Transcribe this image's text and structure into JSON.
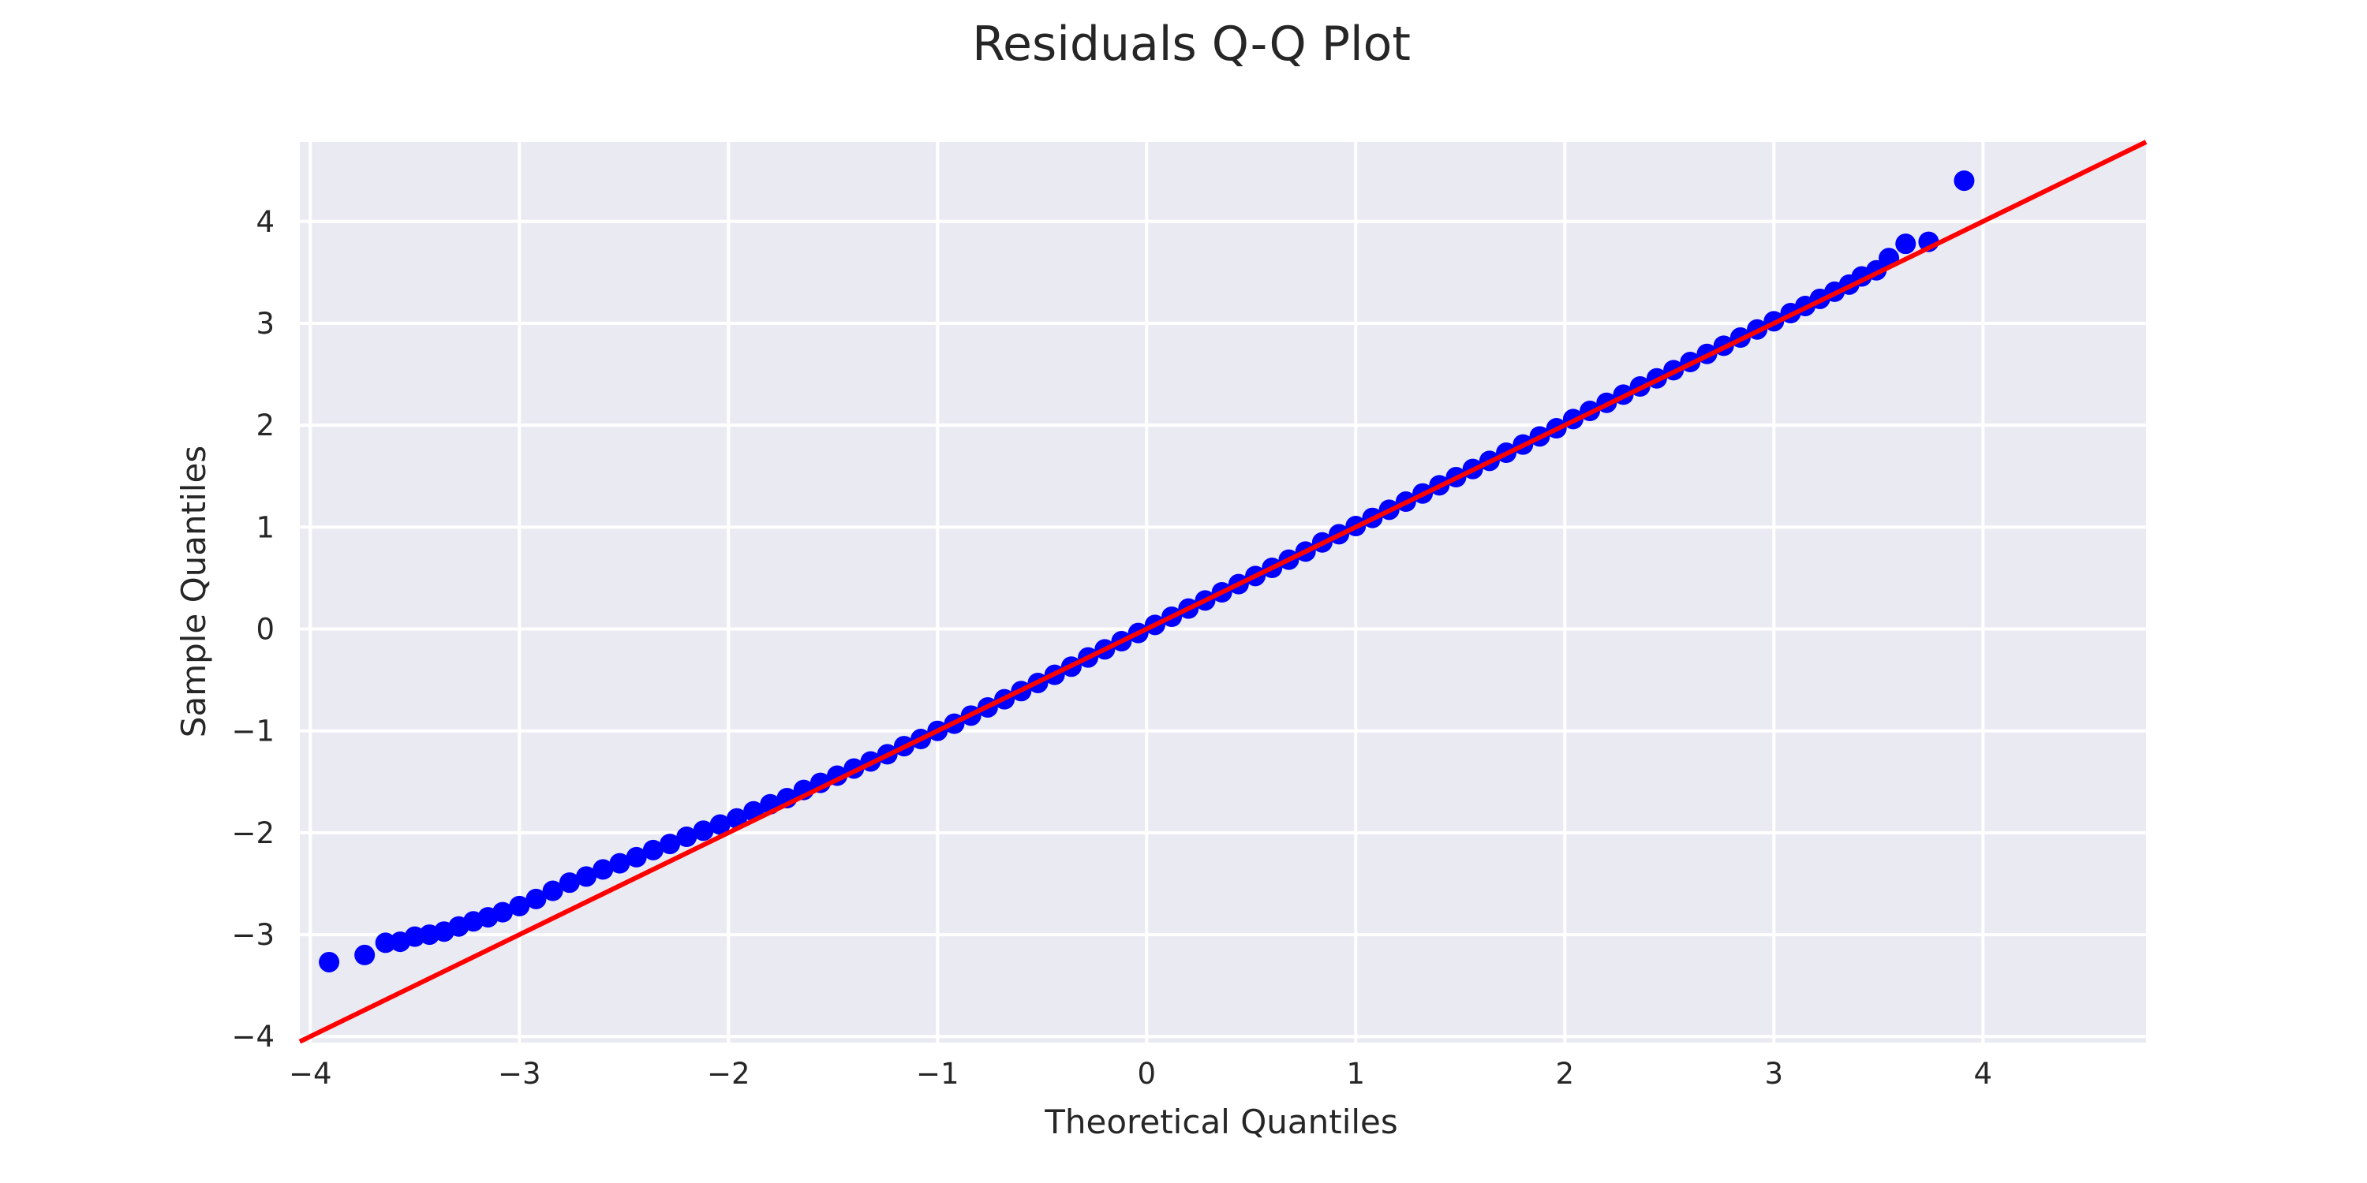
{
  "chart_data": {
    "type": "scatter",
    "title": "Residuals Q-Q Plot",
    "xlabel": "Theoretical Quantiles",
    "ylabel": "Sample Quantiles",
    "xlim": [
      -4.05,
      4.78
    ],
    "ylim": [
      -4.06,
      4.78
    ],
    "x_ticks": [
      -4,
      -3,
      -2,
      -1,
      0,
      1,
      2,
      3,
      4
    ],
    "y_ticks": [
      -4,
      -3,
      -2,
      -1,
      0,
      1,
      2,
      3,
      4
    ],
    "x_tick_labels": [
      "−4",
      "−3",
      "−2",
      "−1",
      "0",
      "1",
      "2",
      "3",
      "4"
    ],
    "y_tick_labels": [
      "−4",
      "−3",
      "−2",
      "−1",
      "0",
      "1",
      "2",
      "3",
      "4"
    ],
    "grid": true,
    "colors": {
      "background": "#eaeaf2",
      "grid": "#ffffff",
      "points": "#0000ff",
      "reference_line": "#ff0000"
    },
    "reference_line": {
      "slope": 1,
      "intercept": 0
    },
    "series": [
      {
        "values": [
          [
            -3.91,
            -3.27
          ],
          [
            -3.74,
            -3.2
          ],
          [
            -3.64,
            -3.08
          ],
          [
            -3.57,
            -3.07
          ],
          [
            -3.5,
            -3.02
          ],
          [
            -3.43,
            -3.0
          ],
          [
            -3.36,
            -2.97
          ],
          [
            -3.29,
            -2.92
          ],
          [
            -3.22,
            -2.87
          ],
          [
            -3.15,
            -2.83
          ],
          [
            -3.08,
            -2.78
          ],
          [
            -3.0,
            -2.72
          ],
          [
            -2.92,
            -2.65
          ],
          [
            -2.84,
            -2.57
          ],
          [
            -2.76,
            -2.49
          ],
          [
            -2.68,
            -2.43
          ],
          [
            -2.6,
            -2.36
          ],
          [
            -2.52,
            -2.3
          ],
          [
            -2.44,
            -2.24
          ],
          [
            -2.36,
            -2.17
          ],
          [
            -2.28,
            -2.11
          ],
          [
            -2.2,
            -2.04
          ],
          [
            -2.12,
            -1.98
          ],
          [
            -2.04,
            -1.92
          ],
          [
            -1.96,
            -1.86
          ],
          [
            -1.88,
            -1.79
          ],
          [
            -1.8,
            -1.72
          ],
          [
            -1.72,
            -1.66
          ],
          [
            -1.64,
            -1.58
          ],
          [
            -1.56,
            -1.51
          ],
          [
            -1.48,
            -1.44
          ],
          [
            -1.4,
            -1.37
          ],
          [
            -1.32,
            -1.3
          ],
          [
            -1.24,
            -1.23
          ],
          [
            -1.16,
            -1.15
          ],
          [
            -1.08,
            -1.08
          ],
          [
            -1.0,
            -1.0
          ],
          [
            -0.92,
            -0.93
          ],
          [
            -0.84,
            -0.85
          ],
          [
            -0.76,
            -0.77
          ],
          [
            -0.68,
            -0.69
          ],
          [
            -0.6,
            -0.61
          ],
          [
            -0.52,
            -0.53
          ],
          [
            -0.44,
            -0.45
          ],
          [
            -0.36,
            -0.37
          ],
          [
            -0.28,
            -0.28
          ],
          [
            -0.2,
            -0.2
          ],
          [
            -0.12,
            -0.12
          ],
          [
            -0.04,
            -0.04
          ],
          [
            0.04,
            0.04
          ],
          [
            0.12,
            0.12
          ],
          [
            0.2,
            0.2
          ],
          [
            0.28,
            0.28
          ],
          [
            0.36,
            0.36
          ],
          [
            0.44,
            0.44
          ],
          [
            0.52,
            0.52
          ],
          [
            0.6,
            0.6
          ],
          [
            0.68,
            0.68
          ],
          [
            0.76,
            0.76
          ],
          [
            0.84,
            0.85
          ],
          [
            0.92,
            0.93
          ],
          [
            1.0,
            1.01
          ],
          [
            1.08,
            1.09
          ],
          [
            1.16,
            1.17
          ],
          [
            1.24,
            1.25
          ],
          [
            1.32,
            1.33
          ],
          [
            1.4,
            1.41
          ],
          [
            1.48,
            1.49
          ],
          [
            1.56,
            1.57
          ],
          [
            1.64,
            1.65
          ],
          [
            1.72,
            1.73
          ],
          [
            1.8,
            1.81
          ],
          [
            1.88,
            1.89
          ],
          [
            1.96,
            1.97
          ],
          [
            2.04,
            2.06
          ],
          [
            2.12,
            2.14
          ],
          [
            2.2,
            2.22
          ],
          [
            2.28,
            2.3
          ],
          [
            2.36,
            2.38
          ],
          [
            2.44,
            2.46
          ],
          [
            2.52,
            2.54
          ],
          [
            2.6,
            2.62
          ],
          [
            2.68,
            2.7
          ],
          [
            2.76,
            2.78
          ],
          [
            2.84,
            2.86
          ],
          [
            2.92,
            2.94
          ],
          [
            3.0,
            3.02
          ],
          [
            3.08,
            3.1
          ],
          [
            3.15,
            3.17
          ],
          [
            3.22,
            3.24
          ],
          [
            3.29,
            3.31
          ],
          [
            3.36,
            3.38
          ],
          [
            3.42,
            3.46
          ],
          [
            3.49,
            3.52
          ],
          [
            3.55,
            3.64
          ],
          [
            3.63,
            3.78
          ],
          [
            3.74,
            3.8
          ],
          [
            3.91,
            4.4
          ]
        ]
      }
    ]
  }
}
